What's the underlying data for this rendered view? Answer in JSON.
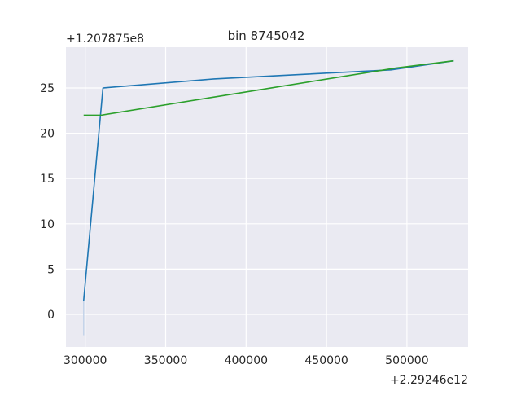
{
  "chart_data": {
    "type": "line",
    "title": "bin 8745042",
    "xlabel": "",
    "ylabel": "",
    "x_offset_label": "+2.29246e12",
    "y_offset_label": "+1.207875e8",
    "xlim": [
      288000,
      538000
    ],
    "ylim": [
      -3.6,
      29.5
    ],
    "x_ticks": [
      300000,
      350000,
      400000,
      450000,
      500000
    ],
    "x_tick_labels": [
      "300000",
      "350000",
      "400000",
      "450000",
      "500000"
    ],
    "y_ticks": [
      0,
      5,
      10,
      15,
      20,
      25
    ],
    "y_tick_labels": [
      "0",
      "5",
      "10",
      "15",
      "20",
      "25"
    ],
    "grid": true,
    "legend": "none",
    "colors": {
      "background": "#eaeaf2",
      "grid": "#ffffff",
      "band": "#c5d4ea"
    },
    "series": [
      {
        "color": "#1f77b4",
        "x": [
          299000,
          311000,
          380000,
          490000,
          529000
        ],
        "y": [
          1.5,
          25.0,
          26.0,
          27.0,
          28.0
        ]
      },
      {
        "color": "#2ca02c",
        "x": [
          299000,
          310000,
          380000,
          493000,
          529000
        ],
        "y": [
          22.0,
          22.0,
          24.0,
          27.2,
          28.0
        ]
      }
    ],
    "band": {
      "x": 299000,
      "y_low": -2.3,
      "y_high": 1.5
    }
  }
}
